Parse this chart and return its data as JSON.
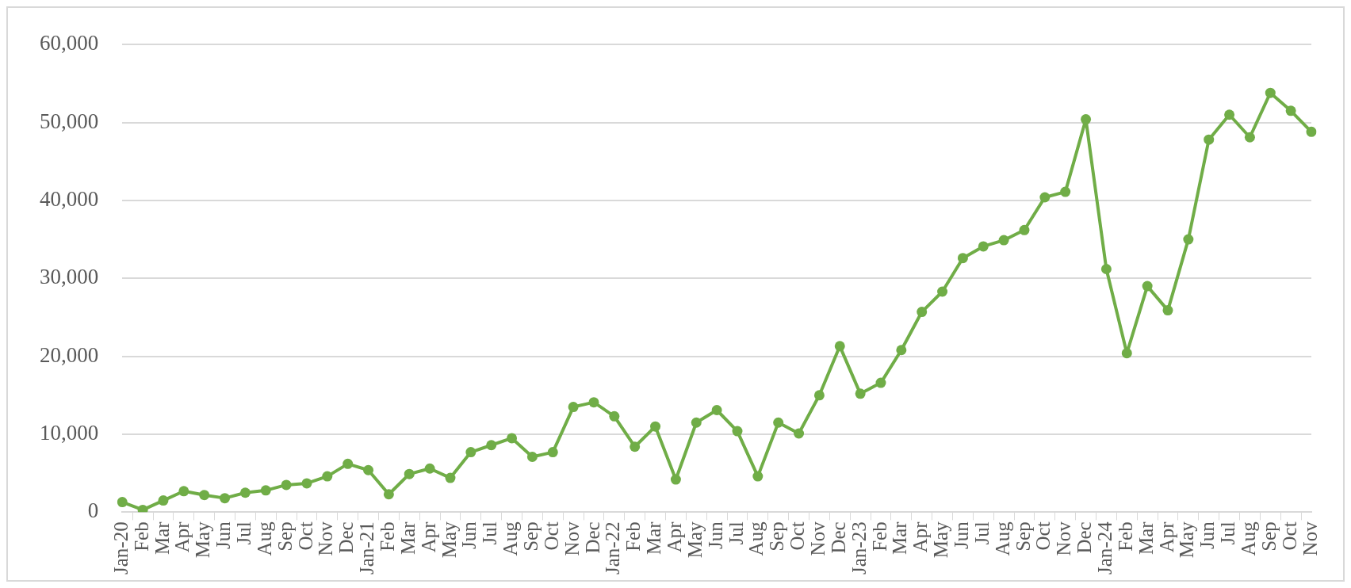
{
  "chart_data": {
    "type": "line",
    "categories": [
      "Jan-20",
      "Feb",
      "Mar",
      "Apr",
      "May",
      "Jun",
      "Jul",
      "Aug",
      "Sep",
      "Oct",
      "Nov",
      "Dec",
      "Jan-21",
      "Feb",
      "Mar",
      "Apr",
      "May",
      "Jun",
      "Jul",
      "Aug",
      "Sep",
      "Oct",
      "Nov",
      "Dec",
      "Jan-22",
      "Feb",
      "Mar",
      "Apr",
      "May",
      "Jun",
      "Jul",
      "Aug",
      "Sep",
      "Oct",
      "Nov",
      "Dec",
      "Jan-23",
      "Feb",
      "Mar",
      "Apr",
      "May",
      "Jun",
      "Jul",
      "Aug",
      "Sep",
      "Oct",
      "Nov",
      "Dec",
      "Jan-24",
      "Feb",
      "Mar",
      "Apr",
      "May",
      "Jun",
      "Jul",
      "Aug",
      "Sep",
      "Oct",
      "Nov"
    ],
    "series": [
      {
        "color": "#70ad47",
        "values": [
          1300,
          300,
          1500,
          2700,
          2200,
          1800,
          2500,
          2800,
          3500,
          3700,
          4600,
          6200,
          5400,
          2300,
          4900,
          5600,
          4400,
          7700,
          8600,
          9500,
          7100,
          7700,
          13500,
          14100,
          12300,
          8400,
          11000,
          4200,
          11500,
          13100,
          10400,
          4600,
          11500,
          10100,
          15000,
          21300,
          15200,
          16600,
          20800,
          25700,
          28300,
          32600,
          34100,
          34900,
          36200,
          40400,
          41100,
          50400,
          31200,
          20400,
          29000,
          25900,
          35000,
          47800,
          51000,
          48100,
          53800,
          51500,
          48800
        ]
      }
    ],
    "ylim": [
      0,
      60000
    ],
    "yticks": [
      0,
      {
        "value": 10000,
        "label": "10,000"
      },
      {
        "value": 20000,
        "label": "20,000"
      },
      {
        "value": 30000,
        "label": "30,000"
      },
      {
        "value": 40000,
        "label": "40,000"
      },
      {
        "value": 50000,
        "label": "50,000"
      },
      {
        "value": 60000,
        "label": "60,000"
      }
    ],
    "grid": "y",
    "legend": false,
    "marker": "circle",
    "line_style": "solid"
  }
}
